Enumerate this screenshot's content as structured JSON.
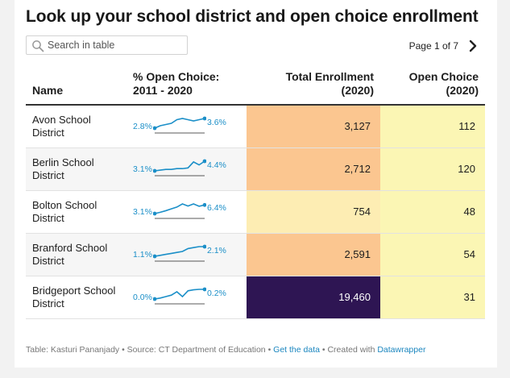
{
  "title": "Look up your school district and open choice enrollment",
  "search": {
    "placeholder": "Search in table",
    "value": ""
  },
  "pager": {
    "text": "Page 1 of 7"
  },
  "columns": {
    "name": "Name",
    "open_choice_pct_line1": "% Open Choice:",
    "open_choice_pct_line2": "2011 - 2020",
    "total_line1": "Total Enrollment",
    "total_line2": "(2020)",
    "oc_line1": "Open Choice",
    "oc_line2": "(2020)"
  },
  "colors": {
    "accent": "#1b8fc8",
    "total_high": "#fbc690",
    "total_low": "#fdedb3",
    "total_max": "#2e1553",
    "open_choice_bg": "#fbf6b4"
  },
  "rows": [
    {
      "name": "Avon School District",
      "spark_start": "2.8%",
      "spark_end": "3.6%",
      "total": "3,127",
      "open_choice": "112",
      "total_value": 3127,
      "spark": [
        2.8,
        3.0,
        3.1,
        3.2,
        3.5,
        3.6,
        3.5,
        3.4,
        3.5,
        3.6
      ]
    },
    {
      "name": "Berlin School District",
      "spark_start": "3.1%",
      "spark_end": "4.4%",
      "total": "2,712",
      "open_choice": "120",
      "total_value": 2712,
      "spark": [
        3.1,
        3.2,
        3.3,
        3.3,
        3.4,
        3.4,
        3.5,
        4.3,
        3.9,
        4.4
      ]
    },
    {
      "name": "Bolton School District",
      "spark_start": "3.1%",
      "spark_end": "6.4%",
      "total": "754",
      "open_choice": "48",
      "total_value": 754,
      "spark": [
        3.1,
        3.6,
        4.2,
        4.9,
        5.6,
        6.8,
        6.0,
        6.8,
        5.9,
        6.4
      ]
    },
    {
      "name": "Branford School District",
      "spark_start": "1.1%",
      "spark_end": "2.1%",
      "total": "2,591",
      "open_choice": "54",
      "total_value": 2591,
      "spark": [
        1.1,
        1.2,
        1.3,
        1.4,
        1.5,
        1.6,
        1.9,
        2.0,
        2.1,
        2.1
      ]
    },
    {
      "name": "Bridgeport School District",
      "spark_start": "0.0%",
      "spark_end": "0.2%",
      "total": "19,460",
      "open_choice": "31",
      "total_value": 19460,
      "spark": [
        0.0,
        0.02,
        0.05,
        0.08,
        0.15,
        0.05,
        0.17,
        0.19,
        0.2,
        0.2
      ]
    }
  ],
  "footer": {
    "prefix": "Table: Kasturi Pananjady • Source: CT Department of Education • ",
    "link1": "Get the data",
    "mid": " • Created with ",
    "link2": "Datawrapper"
  }
}
